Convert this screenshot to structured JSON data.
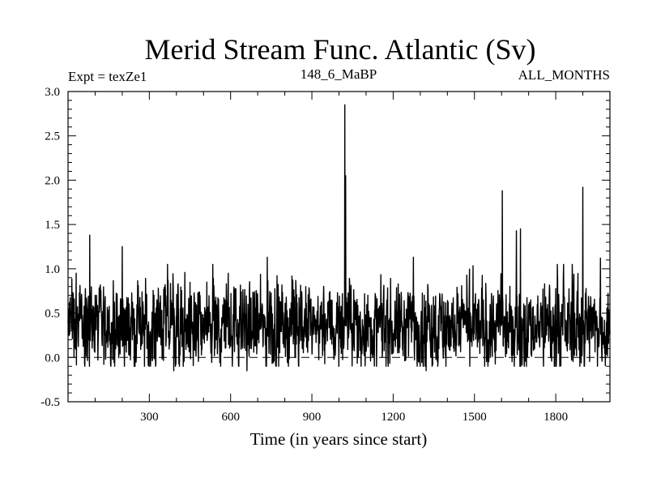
{
  "chart_data": {
    "type": "line",
    "title": "Merid Stream Func. Atlantic (Sv)",
    "subtitle_left": "Expt = texZe1",
    "subtitle_center": "148_6_MaBP",
    "subtitle_right": "ALL_MONTHS",
    "xlabel": "Time (in years since start)",
    "ylabel": "",
    "xlim": [
      0,
      2000
    ],
    "ylim": [
      -0.5,
      3.0
    ],
    "xticks": [
      300,
      600,
      900,
      1200,
      1500,
      1800
    ],
    "xtick_labels": [
      "300",
      "600",
      "900",
      "1200",
      "1500",
      "1800"
    ],
    "yticks": [
      -0.5,
      0.0,
      0.5,
      1.0,
      1.5,
      2.0,
      2.5,
      3.0
    ],
    "ytick_labels": [
      "-0.5",
      "0.0",
      "0.5",
      "1.0",
      "1.5",
      "2.0",
      "2.5",
      "3.0"
    ],
    "reference_line": {
      "y": 0.0,
      "style": "dashed"
    },
    "series": [
      {
        "name": "Merid Stream Func. Atlantic",
        "color": "#000000",
        "baseline_mean": 0.35,
        "noise_amplitude": 0.32,
        "n_points": 2000,
        "peaks": [
          {
            "x": 30,
            "y": 0.95
          },
          {
            "x": 80,
            "y": 1.38
          },
          {
            "x": 200,
            "y": 1.25
          },
          {
            "x": 390,
            "y": -0.15
          },
          {
            "x": 660,
            "y": -0.15
          },
          {
            "x": 735,
            "y": 1.13
          },
          {
            "x": 1022,
            "y": 2.85
          },
          {
            "x": 1025,
            "y": 2.05
          },
          {
            "x": 1275,
            "y": 1.13
          },
          {
            "x": 1322,
            "y": -0.15
          },
          {
            "x": 1603,
            "y": 1.88
          },
          {
            "x": 1655,
            "y": 1.43
          },
          {
            "x": 1670,
            "y": 1.45
          },
          {
            "x": 1900,
            "y": 1.92
          },
          {
            "x": 1905,
            "y": -0.1
          },
          {
            "x": 1965,
            "y": 1.12
          }
        ]
      }
    ]
  }
}
